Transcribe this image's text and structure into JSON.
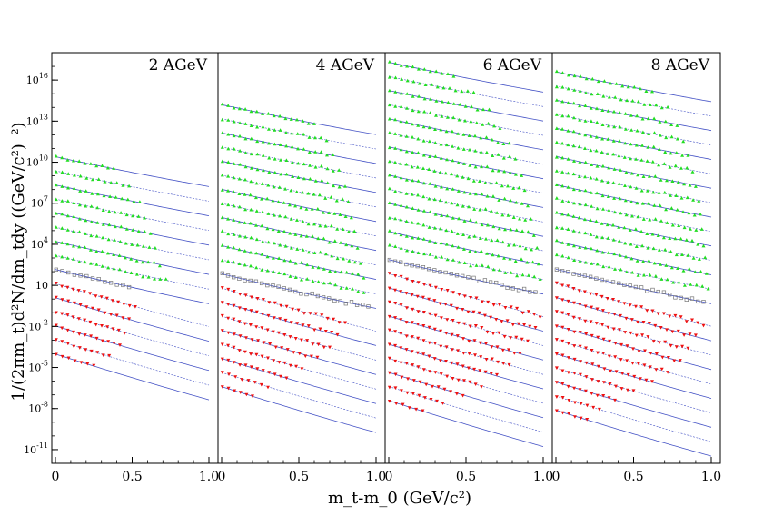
{
  "chart_data": {
    "type": "scatter",
    "ylabel": "1/(2πm_t)d²N/dm_tdy ((GeV/c²)⁻²)",
    "xlabel": "m_t-m_0 (GeV/c²)",
    "y_scale": "log",
    "ylim": [
      1e-12,
      1e+18
    ],
    "xlim": [
      0,
      1.0
    ],
    "grid": false,
    "x_ticks": [
      "0",
      "0.5",
      "1.0"
    ],
    "y_ticks": [
      {
        "mant": "10",
        "exp": "-11",
        "exponent": -11
      },
      {
        "mant": "10",
        "exp": "-8",
        "exponent": -8
      },
      {
        "mant": "10",
        "exp": "-5",
        "exponent": -5
      },
      {
        "mant": "10",
        "exp": "-2",
        "exponent": -2
      },
      {
        "mant": "10",
        "exp": "",
        "exponent": 1
      },
      {
        "mant": "10",
        "exp": "4",
        "exponent": 4
      },
      {
        "mant": "10",
        "exp": "7",
        "exponent": 7
      },
      {
        "mant": "10",
        "exp": "10",
        "exponent": 10
      },
      {
        "mant": "10",
        "exp": "13",
        "exponent": 13
      },
      {
        "mant": "10",
        "exp": "16",
        "exponent": 16
      }
    ],
    "colors": {
      "green_markers": "#22dd22",
      "red_markers": "#ee1111",
      "gray_markers": "#777777",
      "fit_lines": "#2233bb"
    },
    "panels": [
      {
        "label": "2 AGeV",
        "green_rows": 8,
        "start_exp": 10.4,
        "xmax": [
          0.38,
          0.48,
          0.55,
          0.58,
          0.62,
          0.65,
          0.68,
          0.72
        ],
        "red_xmax": [
          0.52,
          0.48,
          0.45,
          0.42,
          0.35,
          0.25
        ]
      },
      {
        "label": "4 AGeV",
        "green_rows": 12,
        "start_exp": 14.2,
        "xmax": [
          0.6,
          0.68,
          0.72,
          0.76,
          0.8,
          0.82,
          0.84,
          0.86,
          0.88,
          0.9,
          0.92,
          0.92
        ],
        "red_xmax": [
          0.8,
          0.75,
          0.7,
          0.62,
          0.52,
          0.42,
          0.3,
          0.2
        ]
      },
      {
        "label": "6 AGeV",
        "green_rows": 14,
        "start_exp": 17.3,
        "xmax": [
          0.42,
          0.55,
          0.65,
          0.72,
          0.78,
          0.82,
          0.86,
          0.88,
          0.9,
          0.92,
          0.94,
          0.96,
          0.97,
          0.98
        ],
        "red_xmax": [
          0.98,
          0.95,
          0.9,
          0.85,
          0.78,
          0.7,
          0.6,
          0.48,
          0.35,
          0.22
        ]
      },
      {
        "label": "8 AGeV",
        "green_rows": 14,
        "start_exp": 16.6,
        "xmax": [
          0.62,
          0.72,
          0.78,
          0.82,
          0.85,
          0.88,
          0.9,
          0.92,
          0.93,
          0.94,
          0.95,
          0.96,
          0.97,
          0.98
        ],
        "red_xmax": [
          0.95,
          0.9,
          0.85,
          0.8,
          0.72,
          0.62,
          0.5,
          0.38,
          0.28,
          0.2
        ]
      }
    ],
    "series_note_legend": ""
  }
}
